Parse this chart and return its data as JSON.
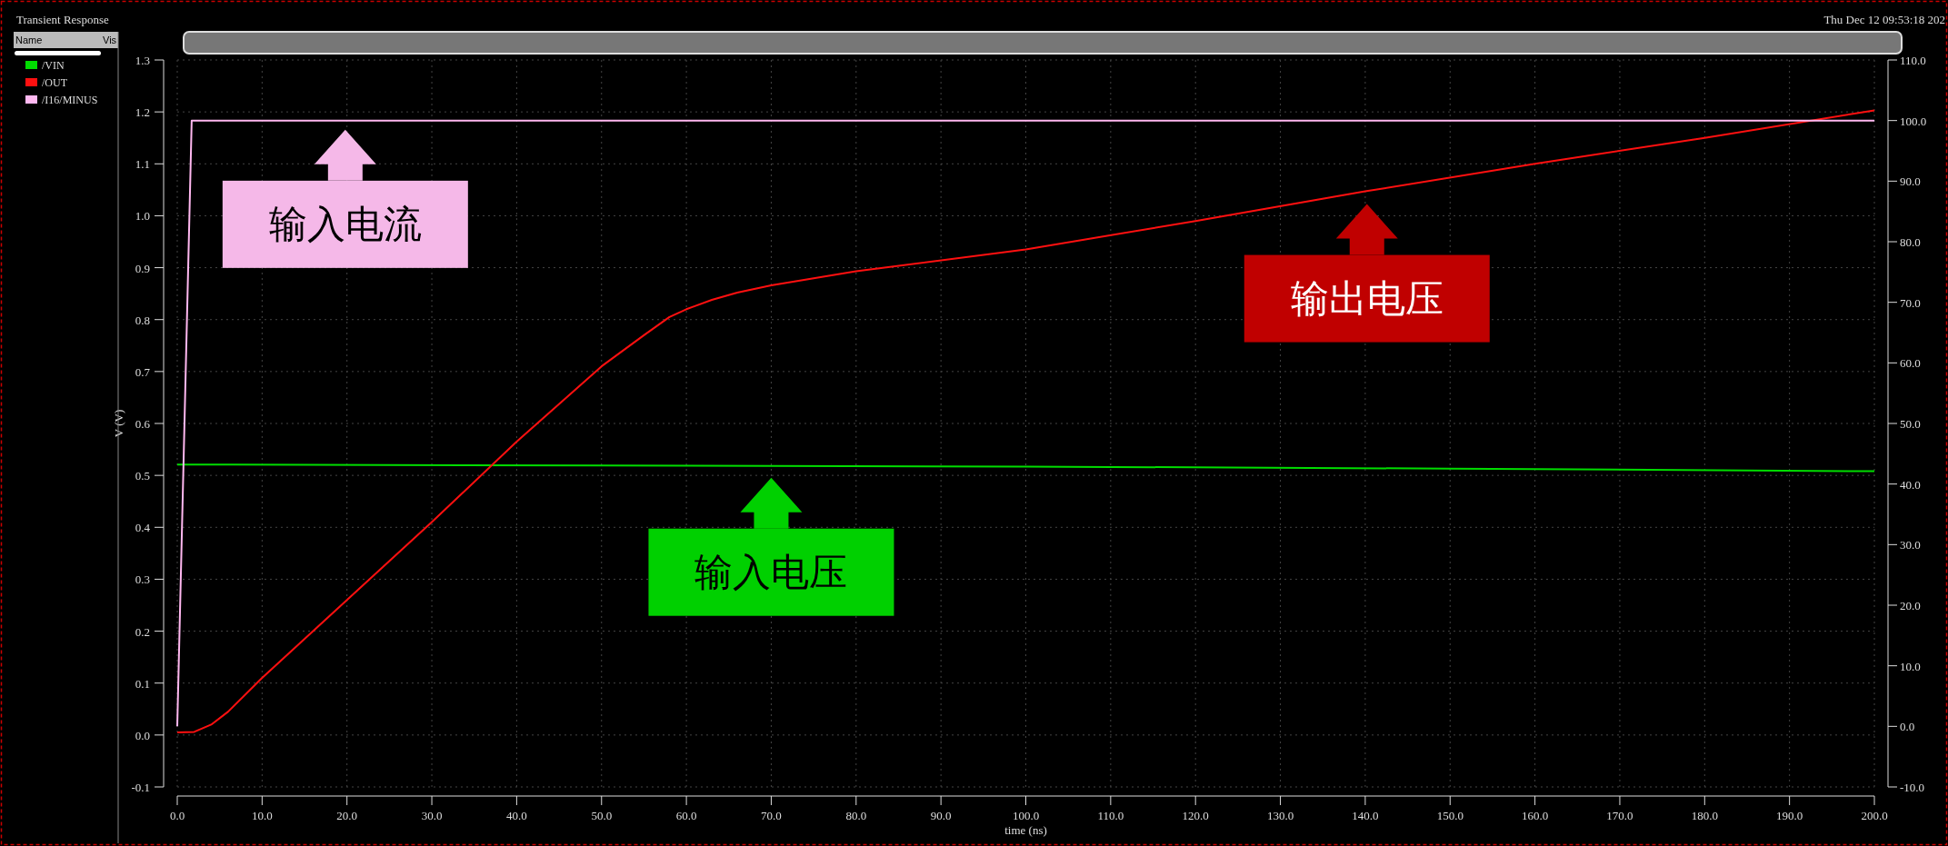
{
  "chart_data": {
    "type": "line",
    "title": "Transient Response",
    "xlabel": "time (ns)",
    "ylabel": "V (V)",
    "legend_title": "Name",
    "x": [
      0,
      2,
      4,
      6,
      10,
      20,
      30,
      40,
      50,
      55,
      58,
      60,
      63,
      66,
      70,
      80,
      100,
      120,
      140,
      160,
      180,
      200
    ],
    "series": [
      {
        "name": "/VIN",
        "color": "#00dd00",
        "x": [
          0,
          50,
          100,
          150,
          200
        ],
        "values": [
          0.521,
          0.519,
          0.517,
          0.513,
          0.508
        ]
      },
      {
        "name": "/OUT",
        "color": "#ff1010",
        "values": [
          0.005,
          0.006,
          0.02,
          0.045,
          0.11,
          0.26,
          0.41,
          0.565,
          0.71,
          0.77,
          0.805,
          0.82,
          0.838,
          0.852,
          0.866,
          0.893,
          0.935,
          0.99,
          1.047,
          1.1,
          1.15,
          1.203
        ]
      },
      {
        "name": "/I16/MINUS",
        "color": "#ffb8f0",
        "axis": "y2",
        "x": [
          0,
          1.7,
          200
        ],
        "values": [
          0,
          100,
          100
        ]
      }
    ],
    "xlim": [
      0,
      200
    ],
    "xticks": [
      {
        "value": 0,
        "label": "0.0"
      },
      {
        "value": 10,
        "label": "10.0"
      },
      {
        "value": 20,
        "label": "20.0"
      },
      {
        "value": 30,
        "label": "30.0"
      },
      {
        "value": 40,
        "label": "40.0"
      },
      {
        "value": 50,
        "label": "50.0"
      },
      {
        "value": 60,
        "label": "60.0"
      },
      {
        "value": 70,
        "label": "70.0"
      },
      {
        "value": 80,
        "label": "80.0"
      },
      {
        "value": 90,
        "label": "90.0"
      },
      {
        "value": 100,
        "label": "100.0"
      },
      {
        "value": 110,
        "label": "110.0"
      },
      {
        "value": 120,
        "label": "120.0"
      },
      {
        "value": 130,
        "label": "130.0"
      },
      {
        "value": 140,
        "label": "140.0"
      },
      {
        "value": 150,
        "label": "150.0"
      },
      {
        "value": 160,
        "label": "160.0"
      },
      {
        "value": 170,
        "label": "170.0"
      },
      {
        "value": 180,
        "label": "180.0"
      },
      {
        "value": 190,
        "label": "190.0"
      },
      {
        "value": 200,
        "label": "200.0"
      }
    ],
    "ylim": [
      -0.1,
      1.3
    ],
    "yticks": [
      -0.1,
      {
        "value": 0,
        "label": "0.0"
      },
      0.1,
      0.2,
      0.3,
      0.4,
      0.5,
      0.6,
      0.7,
      0.8,
      0.9,
      {
        "value": 1,
        "label": "1.0"
      },
      1.1,
      1.2,
      1.3
    ],
    "y2lim": [
      -10,
      110
    ],
    "y2ticks": [
      {
        "value": -10,
        "label": "-10.0"
      },
      {
        "value": 0,
        "label": "0.0"
      },
      {
        "value": 10,
        "label": "10.0"
      },
      {
        "value": 20,
        "label": "20.0"
      },
      {
        "value": 30,
        "label": "30.0"
      },
      {
        "value": 40,
        "label": "40.0"
      },
      {
        "value": 50,
        "label": "50.0"
      },
      {
        "value": 60,
        "label": "60.0"
      },
      {
        "value": 70,
        "label": "70.0"
      },
      {
        "value": 80,
        "label": "80.0"
      },
      {
        "value": 90,
        "label": "90.0"
      },
      {
        "value": 100,
        "label": "100.0"
      },
      {
        "value": 110,
        "label": "110.0"
      }
    ],
    "grid": true,
    "legend": "left",
    "line_style": "solid",
    "marker": "none",
    "annotations": [
      {
        "text": "输入电流",
        "x": 19.8,
        "y": 1.19
      },
      {
        "text": "输出电压",
        "x": 140.2,
        "y": 1.047
      },
      {
        "text": "输入电压",
        "x": 70,
        "y": 0.52
      },
      "Thu Dec 12 09:53:18 202",
      "Vis"
    ]
  }
}
